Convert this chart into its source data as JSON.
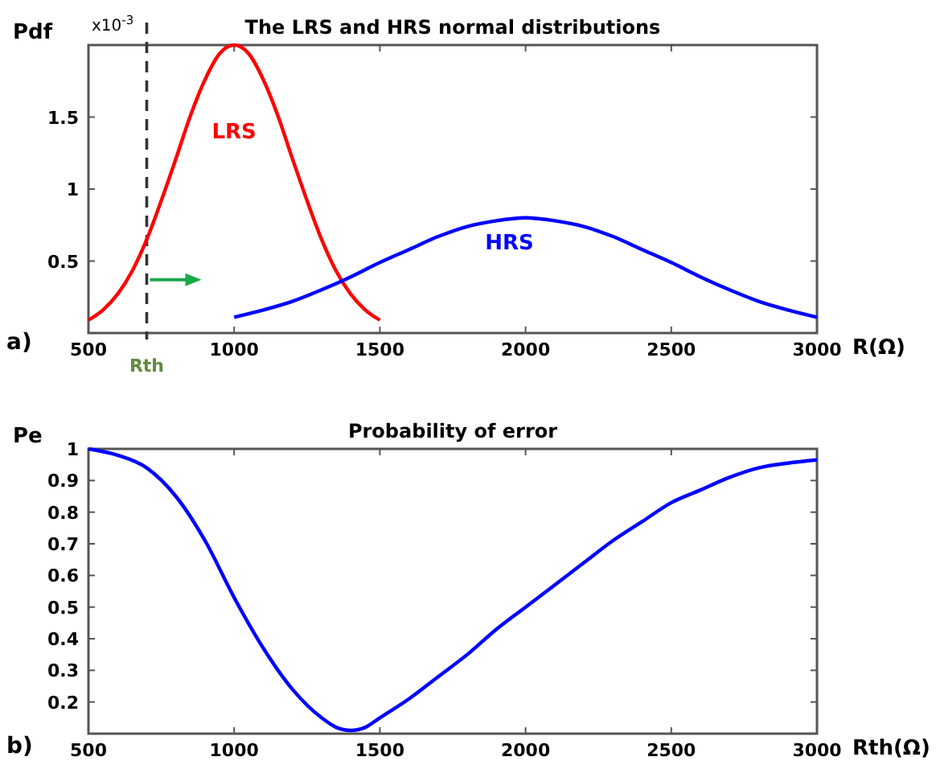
{
  "chart_data": [
    {
      "type": "line",
      "title": "The LRS and HRS normal distributions",
      "xlabel": "R(Ω)",
      "ylabel": "Pdf",
      "xlim": [
        500,
        3000
      ],
      "xticks": [
        500,
        1000,
        1500,
        2000,
        2500,
        3000
      ],
      "ylim": [
        0,
        2
      ],
      "yticks": [
        0.5,
        1,
        1.5
      ],
      "grid": false,
      "legend": false,
      "annotations": [
        "x10$^{-3}$",
        "a)"
      ],
      "ref_lines": [
        {
          "axis": "x",
          "value": 700,
          "label": "Rth",
          "color": "#333333",
          "line_style": "dashed"
        }
      ],
      "series": [
        {
          "name": "LRS",
          "color": "#ff0000",
          "x": [
            500,
            550,
            600,
            650,
            700,
            750,
            800,
            850,
            900,
            950,
            1000,
            1050,
            1100,
            1150,
            1200,
            1250,
            1300,
            1350,
            1400,
            1450,
            1500
          ],
          "values": [
            0.09,
            0.16,
            0.27,
            0.43,
            0.65,
            0.92,
            1.21,
            1.51,
            1.76,
            1.94,
            2.0,
            1.94,
            1.76,
            1.51,
            1.21,
            0.92,
            0.65,
            0.43,
            0.27,
            0.16,
            0.09
          ]
        },
        {
          "name": "HRS",
          "color": "#0000ff",
          "x": [
            1000,
            1100,
            1200,
            1300,
            1400,
            1500,
            1600,
            1700,
            1800,
            1900,
            2000,
            2100,
            2200,
            2300,
            2400,
            2500,
            2600,
            2700,
            2800,
            2900,
            3000
          ],
          "values": [
            0.11,
            0.16,
            0.22,
            0.3,
            0.39,
            0.49,
            0.58,
            0.67,
            0.74,
            0.78,
            0.8,
            0.78,
            0.74,
            0.67,
            0.58,
            0.49,
            0.39,
            0.3,
            0.22,
            0.16,
            0.11
          ]
        }
      ]
    },
    {
      "type": "line",
      "title": "Probability of error",
      "xlabel": "Rth(Ω)",
      "ylabel": "Pe",
      "xlim": [
        500,
        3000
      ],
      "xticks": [
        500,
        1000,
        1500,
        2000,
        2500,
        3000
      ],
      "ylim": [
        0.1,
        1
      ],
      "yticks": [
        0.2,
        0.3,
        0.4,
        0.5,
        0.6,
        0.7,
        0.8,
        0.9,
        1
      ],
      "grid": false,
      "legend": false,
      "annotations": [
        "b)"
      ],
      "series": [
        {
          "color": "#0000ff",
          "x": [
            500,
            600,
            700,
            800,
            900,
            1000,
            1100,
            1200,
            1300,
            1350,
            1400,
            1450,
            1500,
            1600,
            1700,
            1800,
            1900,
            2000,
            2100,
            2200,
            2300,
            2400,
            2500,
            2600,
            2700,
            2800,
            2900,
            3000
          ],
          "values": [
            1.0,
            0.98,
            0.94,
            0.85,
            0.71,
            0.53,
            0.37,
            0.24,
            0.15,
            0.12,
            0.11,
            0.12,
            0.15,
            0.21,
            0.28,
            0.35,
            0.43,
            0.5,
            0.57,
            0.64,
            0.71,
            0.77,
            0.83,
            0.87,
            0.91,
            0.94,
            0.955,
            0.965
          ]
        }
      ]
    }
  ]
}
